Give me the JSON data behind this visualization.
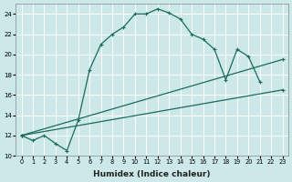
{
  "xlabel": "Humidex (Indice chaleur)",
  "bg_color": "#cce8e8",
  "line_color": "#1a6b5a",
  "grid_color": "#ffffff",
  "xlim": [
    -0.5,
    23.5
  ],
  "ylim": [
    10,
    25
  ],
  "xticks": [
    0,
    1,
    2,
    3,
    4,
    5,
    6,
    7,
    8,
    9,
    10,
    11,
    12,
    13,
    14,
    15,
    16,
    17,
    18,
    19,
    20,
    21,
    22,
    23
  ],
  "yticks": [
    10,
    12,
    14,
    16,
    18,
    20,
    22,
    24
  ],
  "line1_x": [
    0,
    1,
    2,
    3,
    4,
    5,
    6,
    7,
    8,
    9,
    10,
    11,
    12,
    13,
    14,
    15,
    16,
    17,
    18,
    19,
    20,
    21
  ],
  "line1_y": [
    12,
    11.5,
    12,
    11.2,
    10.5,
    13.5,
    18.5,
    21.0,
    22.0,
    22.7,
    24.0,
    24.0,
    24.5,
    24.1,
    23.5,
    22.0,
    21.5,
    20.5,
    17.5,
    20.5,
    19.8,
    17.3
  ],
  "line2_x": [
    0,
    23
  ],
  "line2_y": [
    12,
    19.5
  ],
  "line3_x": [
    0,
    23
  ],
  "line3_y": [
    12,
    16.5
  ]
}
